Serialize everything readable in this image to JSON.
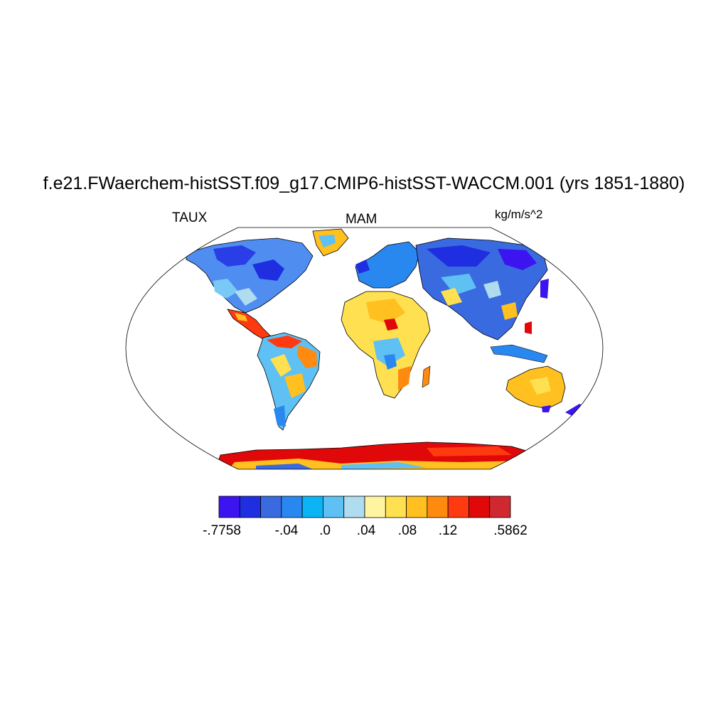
{
  "title": "f.e21.FWaerchem-histSST.f09_g17.CMIP6-histSST-WACCM.001 (yrs 1851-1880)",
  "variable": "TAUX",
  "season": "MAM",
  "units": "kg/m/s^2",
  "colorbar": {
    "colors": [
      "#3b14f0",
      "#1e2ee0",
      "#3a6ae0",
      "#2888f0",
      "#0ab4f5",
      "#5ec0f3",
      "#b0dcf0",
      "#fff5a0",
      "#ffe050",
      "#ffc020",
      "#ff8a10",
      "#ff3a10",
      "#e00808",
      "#d02830"
    ],
    "labels": [
      "-.7758",
      "-.04",
      ".0",
      ".04",
      ".08",
      ".12",
      ".5862"
    ]
  }
}
